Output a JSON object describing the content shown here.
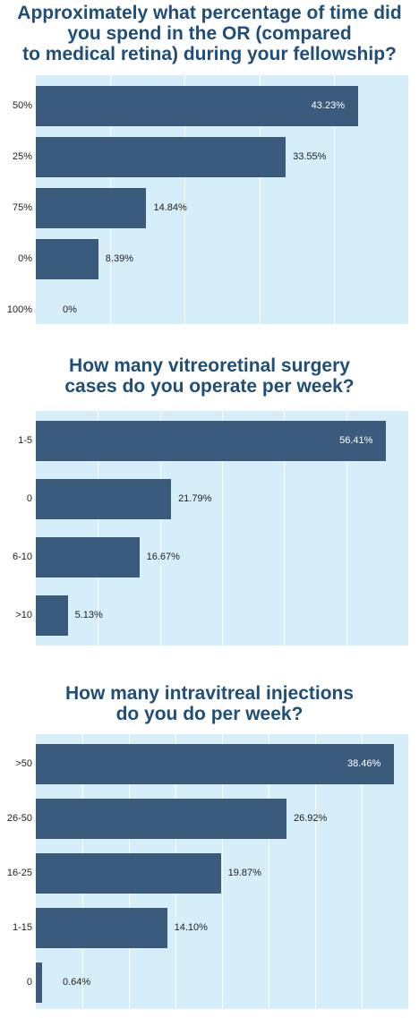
{
  "chart_data": [
    {
      "type": "bar",
      "orientation": "horizontal",
      "title": "Approximately what percentage of time did you spend in the OR (compared to medical retina) during your fellowship?",
      "title_lines": [
        "Approximately what percentage of time did",
        "you spend in the OR (compared",
        "to medical retina) during your fellowship?"
      ],
      "categories": [
        "50%",
        "25%",
        "75%",
        "0%",
        "100%"
      ],
      "values": [
        43.23,
        33.55,
        14.84,
        8.39,
        0
      ],
      "value_labels": [
        "43.23%",
        "33.55%",
        "14.84%",
        "8.39%",
        "0%"
      ],
      "xlim": [
        0,
        50
      ],
      "grid": true,
      "legend": "none"
    },
    {
      "type": "bar",
      "orientation": "horizontal",
      "title": "How many vitreoretinal surgery cases do you operate per week?",
      "title_lines": [
        "How many vitreoretinal surgery",
        "cases do you operate per week?"
      ],
      "categories": [
        "1-5",
        "0",
        "6-10",
        ">10"
      ],
      "values": [
        56.41,
        21.79,
        16.67,
        5.13
      ],
      "value_labels": [
        "56.41%",
        "21.79%",
        "16.67%",
        "5.13%"
      ],
      "xlim": [
        0,
        60
      ],
      "grid": true,
      "legend": "none"
    },
    {
      "type": "bar",
      "orientation": "horizontal",
      "title": "How many intravitreal injections do you do per week?",
      "title_lines": [
        "How many intravitreal injections",
        "do you do per week?"
      ],
      "categories": [
        ">50",
        "26-50",
        "16-25",
        "1-15",
        "0"
      ],
      "values": [
        38.46,
        26.92,
        19.87,
        14.1,
        0.64
      ],
      "value_labels": [
        "38.46%",
        "26.92%",
        "19.87%",
        "14.10%",
        "0.64%"
      ],
      "xlim": [
        0,
        40
      ],
      "grid": true,
      "legend": "none"
    }
  ],
  "colors": {
    "bar": "#3b5b7c",
    "plot_background": "#d6eefa",
    "title": "#1f4e79",
    "gridline": "#ffffff"
  }
}
